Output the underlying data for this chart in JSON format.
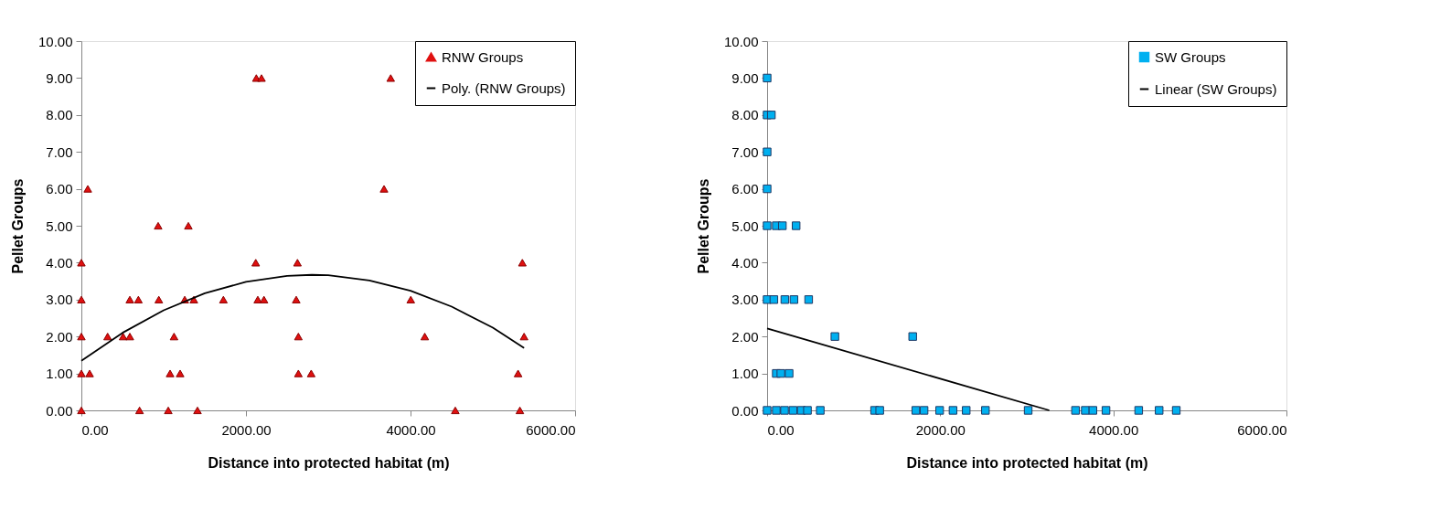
{
  "chart_data": [
    {
      "type": "scatter",
      "xlabel": "Distance into protected habitat (m)",
      "ylabel": "Pellet Groups",
      "xlim": [
        0,
        6000
      ],
      "ylim": [
        0,
        10
      ],
      "xticks": [
        {
          "value": 0,
          "label": "0.00"
        },
        {
          "value": 2000,
          "label": "2000.00"
        },
        {
          "value": 4000,
          "label": "4000.00"
        },
        {
          "value": 6000,
          "label": "6000.00"
        }
      ],
      "yticks": [
        {
          "value": 0,
          "label": "0.00"
        },
        {
          "value": 1,
          "label": "1.00"
        },
        {
          "value": 2,
          "label": "2.00"
        },
        {
          "value": 3,
          "label": "3.00"
        },
        {
          "value": 4,
          "label": "4.00"
        },
        {
          "value": 5,
          "label": "5.00"
        },
        {
          "value": 6,
          "label": "6.00"
        },
        {
          "value": 7,
          "label": "7.00"
        },
        {
          "value": 8,
          "label": "8.00"
        },
        {
          "value": 9,
          "label": "9.00"
        },
        {
          "value": 10,
          "label": "10.00"
        }
      ],
      "grid": false,
      "legend": "top right",
      "series": [
        {
          "name": "RNW Groups",
          "marker": "triangle",
          "color": "#e01010",
          "x": [
            78,
            933,
            1300,
            0,
            2119,
            2626,
            5359,
            0,
            589,
            693,
            941,
            1256,
            1367,
            1726,
            2144,
            2219,
            2611,
            4003,
            0,
            319,
            507,
            589,
            1126,
            2637,
            4173,
            5380,
            0,
            100,
            1078,
            1200,
            2637,
            2793,
            5307,
            0,
            707,
            1056,
            1411,
            4544,
            5329,
            2126,
            2189,
            3759,
            3678
          ],
          "values": [
            6,
            5,
            5,
            4,
            4,
            4,
            4,
            3,
            3,
            3,
            3,
            3,
            3,
            3,
            3,
            3,
            3,
            3,
            2,
            2,
            2,
            2,
            2,
            2,
            2,
            2,
            1,
            1,
            1,
            1,
            1,
            1,
            1,
            0,
            0,
            0,
            0,
            0,
            0,
            9,
            9,
            9,
            6
          ]
        },
        {
          "name": "Poly. (RNW Groups)",
          "type": "line",
          "marker": "none",
          "line_style": "solid",
          "color": "#000000",
          "x": [
            0,
            500,
            1000,
            1500,
            2000,
            2500,
            2800,
            3000,
            3500,
            4000,
            4500,
            5000,
            5380
          ],
          "values": [
            1.34,
            2.1,
            2.71,
            3.17,
            3.48,
            3.64,
            3.67,
            3.66,
            3.52,
            3.24,
            2.81,
            2.24,
            1.69
          ]
        }
      ]
    },
    {
      "type": "scatter",
      "xlabel": "Distance into protected habitat (m)",
      "ylabel": "Pellet Groups",
      "xlim": [
        0,
        6000
      ],
      "ylim": [
        0,
        10
      ],
      "xticks": [
        {
          "value": 0,
          "label": "0.00"
        },
        {
          "value": 2000,
          "label": "2000.00"
        },
        {
          "value": 4000,
          "label": "4000.00"
        },
        {
          "value": 6000,
          "label": "6000.00"
        }
      ],
      "yticks": [
        {
          "value": 0,
          "label": "0.00"
        },
        {
          "value": 1,
          "label": "1.00"
        },
        {
          "value": 2,
          "label": "2.00"
        },
        {
          "value": 3,
          "label": "3.00"
        },
        {
          "value": 4,
          "label": "4.00"
        },
        {
          "value": 5,
          "label": "5.00"
        },
        {
          "value": 6,
          "label": "6.00"
        },
        {
          "value": 7,
          "label": "7.00"
        },
        {
          "value": 8,
          "label": "8.00"
        },
        {
          "value": 9,
          "label": "9.00"
        },
        {
          "value": 10,
          "label": "10.00"
        }
      ],
      "grid": false,
      "legend": "top right",
      "series": [
        {
          "name": "SW Groups",
          "marker": "square",
          "color": "#00b0f0",
          "x": [
            0,
            0,
            49,
            0,
            0,
            0,
            106,
            176,
            335,
            0,
            78,
            205,
            310,
            480,
            783,
            1682,
            106,
            159,
            254,
            0,
            106,
            201,
            300,
            395,
            466,
            614,
            1242,
            1301,
            1718,
            1813,
            1993,
            2148,
            2300,
            2522,
            3016,
            3563,
            3676,
            3764,
            3915,
            4293,
            4529,
            4727
          ],
          "values": [
            9,
            8,
            8,
            7,
            6,
            5,
            5,
            5,
            5,
            3,
            3,
            3,
            3,
            3,
            2,
            2,
            1,
            1,
            1,
            0,
            0,
            0,
            0,
            0,
            0,
            0,
            0,
            0,
            0,
            0,
            0,
            0,
            0,
            0,
            0,
            0,
            0,
            0,
            0,
            0,
            0,
            0
          ]
        },
        {
          "name": "Linear (SW Groups)",
          "type": "line",
          "marker": "none",
          "line_style": "solid",
          "color": "#000000",
          "x": [
            0,
            3260
          ],
          "values": [
            2.22,
            0
          ]
        }
      ]
    }
  ]
}
